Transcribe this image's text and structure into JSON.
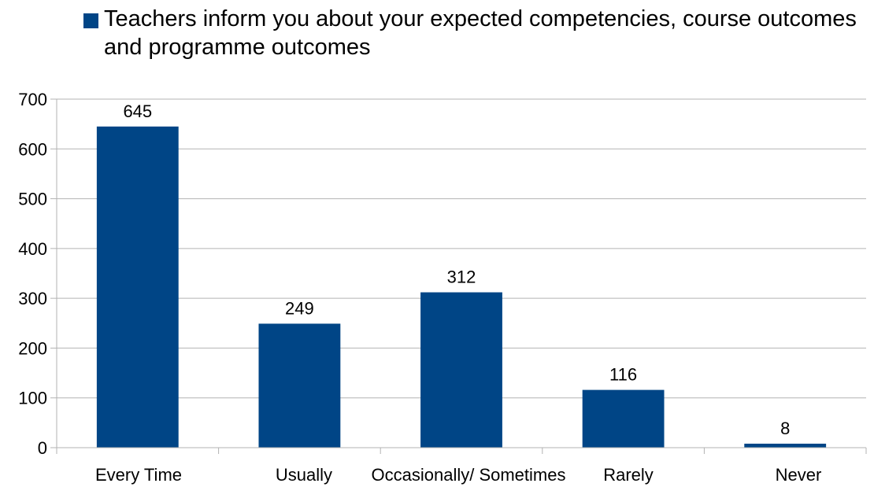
{
  "chart_data": {
    "type": "bar",
    "title": "",
    "xlabel": "",
    "ylabel": "",
    "categories": [
      "Every Time",
      "Usually",
      "Occasionally/ Sometimes",
      "Rarely",
      "Never"
    ],
    "series": [
      {
        "name": "Teachers inform you about your expected competencies, course outcomes and programme outcomes",
        "values": [
          645,
          249,
          312,
          116,
          8
        ],
        "color": "#004586"
      }
    ],
    "ylim": [
      0,
      700
    ],
    "yticks": [
      0,
      100,
      200,
      300,
      400,
      500,
      600,
      700
    ],
    "grid": true,
    "legend_position": "top",
    "data_labels": true
  }
}
